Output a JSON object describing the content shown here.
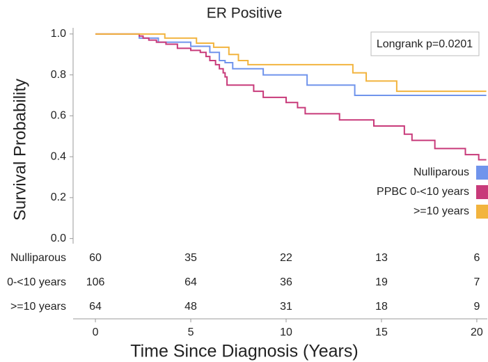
{
  "chart_data": {
    "type": "km-step",
    "title": "ER Positive",
    "x_label": "Time Since Diagnosis (Years)",
    "y_label": "Survival Probability",
    "annotation": "Longrank p=0.0201",
    "xlim": [
      -1.17,
      20.55
    ],
    "ylim": [
      -0.025,
      1.03
    ],
    "xticks": [
      0,
      5,
      10,
      15,
      20
    ],
    "yticks": [
      {
        "value": 0,
        "label": "0.0"
      },
      {
        "value": 0.2,
        "label": "0.2"
      },
      {
        "value": 0.4,
        "label": "0.4"
      },
      {
        "value": 0.6,
        "label": "0.6"
      },
      {
        "value": 0.8,
        "label": "0.8"
      },
      {
        "value": 1,
        "label": "1.0"
      }
    ],
    "legend": "right",
    "series": [
      {
        "name": "Nulliparous",
        "color": "#7094ec",
        "x": [
          0,
          2.3,
          3.3,
          5.0,
          6.0,
          6.5,
          6.8,
          7.2,
          8.8,
          11.1,
          13.6,
          20.5
        ],
        "values": [
          1.0,
          0.98,
          0.96,
          0.94,
          0.91,
          0.87,
          0.86,
          0.83,
          0.8,
          0.75,
          0.7,
          0.7
        ]
      },
      {
        "name": "PPBC 0-<10 years",
        "color": "#c83a7a",
        "x": [
          0,
          2.3,
          2.5,
          2.8,
          3.2,
          3.7,
          4.3,
          5.0,
          5.5,
          5.8,
          6.0,
          6.3,
          6.5,
          6.7,
          6.8,
          6.9,
          8.3,
          8.8,
          10.0,
          10.6,
          11.0,
          12.8,
          14.6,
          16.2,
          16.6,
          17.8,
          19.4,
          20.1,
          20.5
        ],
        "values": [
          1.0,
          0.99,
          0.98,
          0.97,
          0.96,
          0.95,
          0.93,
          0.92,
          0.91,
          0.89,
          0.87,
          0.85,
          0.83,
          0.81,
          0.79,
          0.75,
          0.72,
          0.69,
          0.665,
          0.64,
          0.61,
          0.58,
          0.55,
          0.51,
          0.48,
          0.44,
          0.41,
          0.385,
          0.385
        ]
      },
      {
        "name": ">=10 years",
        "color": "#f2b43e",
        "x": [
          0,
          3.64,
          5.3,
          6.2,
          7.0,
          7.5,
          8.0,
          13.5,
          14.2,
          15.8,
          20.5
        ],
        "values": [
          1.0,
          0.98,
          0.955,
          0.935,
          0.9,
          0.87,
          0.85,
          0.81,
          0.77,
          0.72,
          0.72
        ]
      }
    ],
    "risk_table": {
      "rows": [
        {
          "label": "Nulliparous",
          "counts": [
            60,
            35,
            22,
            13,
            6
          ]
        },
        {
          "label": "0-<10 years",
          "counts": [
            106,
            64,
            36,
            19,
            7
          ]
        },
        {
          "label": ">=10 years",
          "counts": [
            64,
            48,
            31,
            18,
            9
          ]
        }
      ]
    }
  }
}
